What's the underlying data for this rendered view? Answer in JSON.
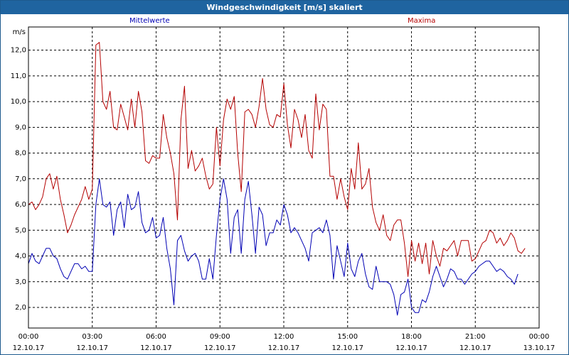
{
  "window": {
    "title": "Windgeschwindigkeit [m/s] skaliert"
  },
  "chart_data": {
    "type": "line",
    "title": "Windgeschwindigkeit [m/s] skaliert",
    "ylabel": "m/s",
    "xlabel": "",
    "ylim": [
      1.2,
      12.9
    ],
    "xlim": [
      0,
      24
    ],
    "grid": true,
    "legend": "top",
    "y_ticks": [
      "2,0",
      "3,0",
      "4,0",
      "5,0",
      "6,0",
      "7,0",
      "8,0",
      "9,0",
      "10,0",
      "11,0",
      "12,0"
    ],
    "x_ticks": [
      {
        "time": "00:00",
        "date": "12.10.17"
      },
      {
        "time": "03:00",
        "date": "12.10.17"
      },
      {
        "time": "06:00",
        "date": "12.10.17"
      },
      {
        "time": "09:00",
        "date": "12.10.17"
      },
      {
        "time": "12:00",
        "date": "12.10.17"
      },
      {
        "time": "15:00",
        "date": "12.10.17"
      },
      {
        "time": "18:00",
        "date": "12.10.17"
      },
      {
        "time": "21:00",
        "date": "12.10.17"
      },
      {
        "time": "00:00",
        "date": "13.10.17"
      }
    ],
    "x_step_hours": 0.1667,
    "series": [
      {
        "name": "Mittelwerte",
        "color": "#0000b4",
        "values": [
          3.7,
          4.1,
          3.8,
          3.7,
          4.0,
          4.3,
          4.3,
          4.0,
          3.9,
          3.5,
          3.2,
          3.1,
          3.4,
          3.7,
          3.7,
          3.5,
          3.6,
          3.4,
          3.4,
          6.0,
          7.0,
          6.0,
          5.9,
          6.1,
          4.8,
          5.8,
          6.1,
          5.1,
          6.4,
          5.8,
          5.9,
          6.5,
          5.3,
          4.9,
          5.0,
          5.5,
          4.7,
          4.8,
          5.5,
          4.3,
          3.5,
          2.1,
          4.6,
          4.8,
          4.2,
          3.8,
          4.0,
          4.1,
          3.8,
          3.1,
          3.1,
          3.9,
          3.1,
          4.8,
          6.2,
          7.0,
          6.2,
          4.1,
          5.5,
          5.8,
          4.1,
          6.2,
          6.9,
          5.6,
          4.1,
          5.9,
          5.6,
          4.4,
          4.9,
          4.9,
          5.4,
          5.2,
          6.0,
          5.6,
          4.9,
          5.1,
          4.9,
          4.6,
          4.3,
          3.8,
          4.9,
          5.0,
          5.1,
          4.9,
          5.4,
          4.8,
          3.1,
          4.4,
          3.8,
          3.2,
          4.5,
          3.5,
          3.2,
          3.8,
          4.1,
          3.3,
          2.8,
          2.7,
          3.6,
          3.0,
          3.0,
          3.0,
          2.9,
          2.5,
          1.7,
          2.5,
          2.6,
          3.1,
          2.0,
          1.8,
          1.8,
          2.3,
          2.2,
          2.6,
          3.2,
          3.6,
          3.2,
          2.8,
          3.1,
          3.5,
          3.4,
          3.1,
          3.1,
          2.9,
          3.1,
          3.3,
          3.4,
          3.6,
          3.7,
          3.8,
          3.8,
          3.6,
          3.4,
          3.5,
          3.4,
          3.2,
          3.1,
          2.9,
          3.3
        ]
      },
      {
        "name": "Maxima",
        "color": "#b40000",
        "values": [
          6.0,
          6.1,
          5.8,
          6.0,
          6.3,
          7.0,
          7.2,
          6.6,
          7.1,
          6.2,
          5.6,
          4.9,
          5.2,
          5.6,
          5.9,
          6.2,
          6.7,
          6.2,
          6.6,
          12.2,
          12.3,
          10.0,
          9.7,
          10.4,
          9.0,
          8.9,
          9.9,
          9.4,
          8.9,
          10.1,
          9.0,
          10.4,
          9.6,
          7.7,
          7.6,
          7.9,
          7.8,
          7.8,
          9.5,
          8.6,
          8.0,
          7.2,
          5.4,
          9.3,
          10.6,
          7.4,
          8.1,
          7.3,
          7.5,
          7.8,
          7.1,
          6.6,
          6.8,
          9.0,
          7.5,
          9.3,
          10.1,
          9.7,
          10.2,
          8.0,
          6.5,
          9.6,
          9.7,
          9.5,
          9.0,
          9.8,
          10.9,
          9.7,
          9.1,
          9.0,
          9.5,
          9.4,
          10.7,
          9.1,
          8.2,
          9.7,
          9.3,
          8.6,
          9.5,
          8.1,
          7.8,
          10.3,
          8.9,
          9.9,
          9.7,
          7.1,
          7.1,
          6.2,
          7.0,
          6.3,
          5.8,
          7.4,
          6.6,
          8.4,
          6.6,
          6.8,
          7.4,
          5.9,
          5.3,
          5.0,
          5.6,
          4.8,
          4.6,
          5.2,
          5.4,
          5.4,
          4.5,
          3.2,
          4.6,
          3.8,
          4.5,
          3.7,
          4.5,
          3.3,
          4.6,
          4.0,
          3.6,
          4.3,
          4.2,
          4.4,
          4.6,
          4.0,
          4.6,
          4.6,
          4.6,
          3.8,
          3.9,
          4.2,
          4.5,
          4.6,
          5.0,
          4.9,
          4.5,
          4.7,
          4.4,
          4.6,
          4.9,
          4.7,
          4.2,
          4.1,
          4.3
        ]
      }
    ]
  }
}
